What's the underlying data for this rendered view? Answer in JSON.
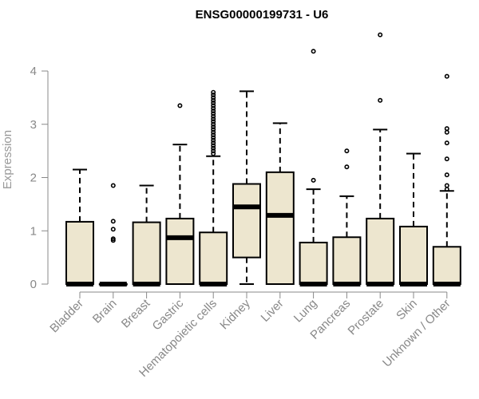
{
  "chart_data": {
    "type": "boxplot",
    "title": "ENSG00000199731 - U6",
    "xlabel": "",
    "ylabel": "Expression",
    "ylim": [
      0,
      4.7
    ],
    "yticks": [
      0,
      1,
      2,
      3,
      4
    ],
    "grid": false,
    "colors": {
      "box_fill": "#ede6cf",
      "box_stroke": "#000000",
      "axis": "#888888",
      "label": "#999999"
    },
    "categories": [
      "Bladder",
      "Brain",
      "Breast",
      "Gastric",
      "Hematopoietic cells",
      "Kidney",
      "Liver",
      "Lung",
      "Pancreas",
      "Prostate",
      "Skin",
      "Unknown / Other"
    ],
    "boxes": [
      {
        "name": "Bladder",
        "q1": 0,
        "median": 0,
        "q3": 1.17,
        "whisker_low": 0,
        "whisker_high": 2.15,
        "outliers": []
      },
      {
        "name": "Brain",
        "q1": 0,
        "median": 0,
        "q3": 0,
        "whisker_low": 0,
        "whisker_high": 0,
        "outliers": [
          0.82,
          0.85,
          1.03,
          1.18,
          1.85
        ]
      },
      {
        "name": "Breast",
        "q1": 0,
        "median": 0,
        "q3": 1.16,
        "whisker_low": 0,
        "whisker_high": 1.85,
        "outliers": []
      },
      {
        "name": "Gastric",
        "q1": 0,
        "median": 0.87,
        "q3": 1.23,
        "whisker_low": 0,
        "whisker_high": 2.62,
        "outliers": [
          3.35
        ]
      },
      {
        "name": "Hematopoietic cells",
        "q1": 0,
        "median": 0,
        "q3": 0.97,
        "whisker_low": 0,
        "whisker_high": 2.4,
        "outliers": [
          2.45,
          2.5,
          2.55,
          2.6,
          2.65,
          2.7,
          2.75,
          2.8,
          2.85,
          2.9,
          2.95,
          3.0,
          3.05,
          3.1,
          3.15,
          3.2,
          3.25,
          3.3,
          3.35,
          3.4,
          3.45,
          3.5,
          3.55,
          3.6
        ]
      },
      {
        "name": "Kidney",
        "q1": 0.5,
        "median": 1.45,
        "q3": 1.88,
        "whisker_low": 0,
        "whisker_high": 3.62,
        "outliers": []
      },
      {
        "name": "Liver",
        "q1": 0,
        "median": 1.29,
        "q3": 2.1,
        "whisker_low": 0,
        "whisker_high": 3.02,
        "outliers": []
      },
      {
        "name": "Lung",
        "q1": 0,
        "median": 0,
        "q3": 0.78,
        "whisker_low": 0,
        "whisker_high": 1.78,
        "outliers": [
          1.95,
          4.37
        ]
      },
      {
        "name": "Pancreas",
        "q1": 0,
        "median": 0,
        "q3": 0.88,
        "whisker_low": 0,
        "whisker_high": 1.65,
        "outliers": [
          2.2,
          2.5
        ]
      },
      {
        "name": "Prostate",
        "q1": 0,
        "median": 0,
        "q3": 1.23,
        "whisker_low": 0,
        "whisker_high": 2.9,
        "outliers": [
          3.45,
          4.68
        ]
      },
      {
        "name": "Skin",
        "q1": 0,
        "median": 0,
        "q3": 1.08,
        "whisker_low": 0,
        "whisker_high": 2.45,
        "outliers": []
      },
      {
        "name": "Unknown / Other",
        "q1": 0,
        "median": 0,
        "q3": 0.7,
        "whisker_low": 0,
        "whisker_high": 1.75,
        "outliers": [
          1.78,
          1.85,
          2.05,
          2.35,
          2.65,
          2.85,
          2.92,
          3.9
        ]
      }
    ]
  }
}
